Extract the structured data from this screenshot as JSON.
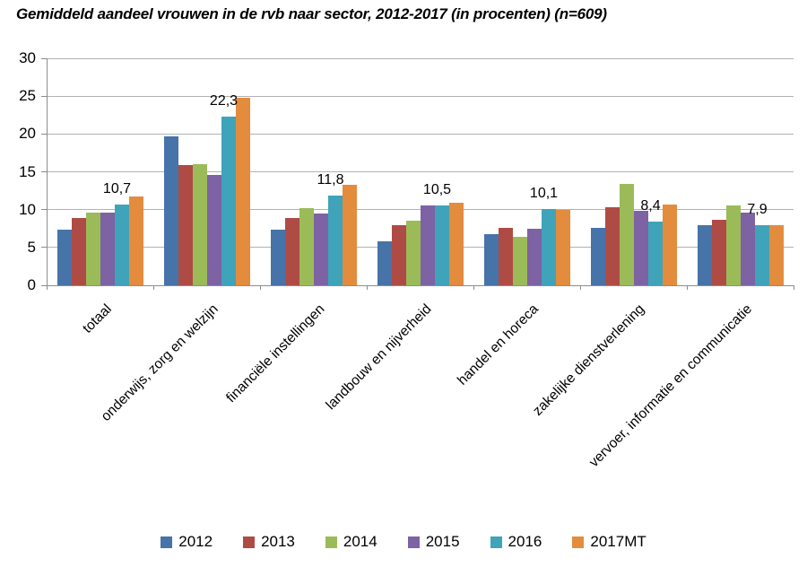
{
  "title": "Gemiddeld aandeel vrouwen in de rvb naar sector, 2012-2017 (in procenten) (n=609)",
  "chart_data": {
    "type": "bar",
    "title": "Gemiddeld aandeel vrouwen in de rvb naar sector, 2012-2017 (in procenten) (n=609)",
    "categories": [
      "totaal",
      "onderwijs, zorg en welzijn",
      "financiële instellingen",
      "landbouw en nijverheid",
      "handel en horeca",
      "zakelijke dienstverlening",
      "vervoer, informatie en communicatie"
    ],
    "series": [
      {
        "name": "2012",
        "color": "#4673a8",
        "values": [
          7.4,
          19.7,
          7.3,
          5.8,
          6.8,
          7.6,
          8.0
        ]
      },
      {
        "name": "2013",
        "color": "#af4b45",
        "values": [
          8.9,
          15.9,
          8.9,
          7.9,
          7.6,
          10.3,
          8.6
        ]
      },
      {
        "name": "2014",
        "color": "#9bbb59",
        "values": [
          9.6,
          16.0,
          10.2,
          8.5,
          6.4,
          13.4,
          10.5
        ]
      },
      {
        "name": "2015",
        "color": "#7d62a4",
        "values": [
          9.6,
          14.6,
          9.5,
          10.6,
          7.5,
          9.8,
          9.6
        ]
      },
      {
        "name": "2016",
        "color": "#3fa3ba",
        "values": [
          10.7,
          22.3,
          11.8,
          10.5,
          10.1,
          8.4,
          7.9
        ]
      },
      {
        "name": "2017MT",
        "color": "#e38c3d",
        "values": [
          11.7,
          24.8,
          13.3,
          10.9,
          10.0,
          10.7,
          7.9
        ]
      }
    ],
    "data_labels": {
      "labeled_series": "2016",
      "values": [
        "10,7",
        "22,3",
        "11,8",
        "10,5",
        "10,1",
        "8,4",
        "7,9"
      ]
    },
    "xlabel": "",
    "ylabel": "",
    "ylim": [
      0,
      30
    ],
    "yticks": [
      0,
      5,
      10,
      15,
      20,
      25,
      30
    ],
    "grid": true,
    "legend_position": "bottom"
  },
  "colors": {
    "grid": "#b2b2b2",
    "axis": "#8c8c8c",
    "background": "#ffffff",
    "text": "#000000"
  }
}
